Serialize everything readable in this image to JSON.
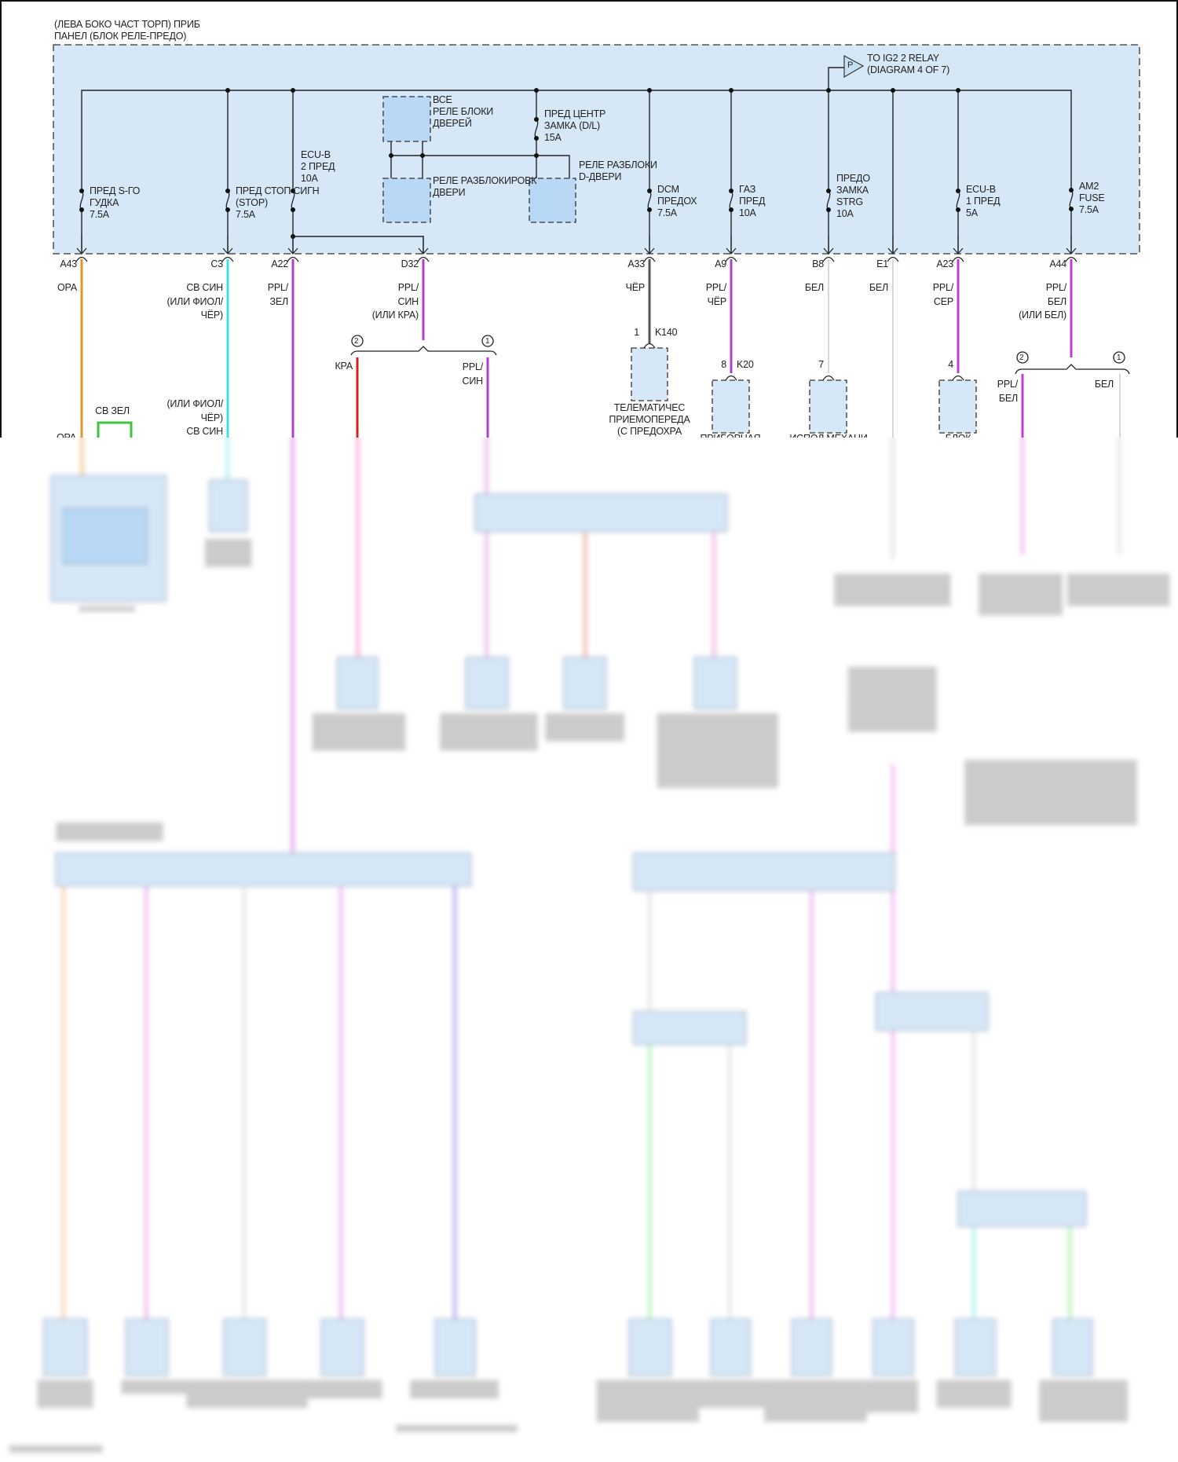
{
  "panel": {
    "title_lines": [
      "(ЛЕВА БОКО ЧАСТ ТОРП) ПРИБ",
      "ПАНЕЛ (БЛОК РЕЛЕ-ПРЕДО)"
    ],
    "fill_color": "#d6e8f8",
    "ig2_link": {
      "symbol": "P",
      "lines": [
        "TO IG2 2 RELAY",
        "(DIAGRAM 4 OF 7)"
      ]
    },
    "fuses": [
      {
        "lines": [
          "ПРЕД S-ГО",
          "ГУДКА",
          "7.5A"
        ]
      },
      {
        "lines": [
          "ПРЕД СТОП СИГН",
          "(STOP)",
          "7.5A"
        ]
      },
      {
        "lines": [
          "ECU-B",
          "2 ПРЕД",
          "10A"
        ]
      },
      {
        "lines": [
          "ПРЕД ЦЕНТР",
          "ЗАМКА (D/L)",
          "15A"
        ]
      },
      {
        "lines": [
          "DCM",
          "ПРЕДОХ",
          "7.5A"
        ]
      },
      {
        "lines": [
          "ГАЗ",
          "ПРЕД",
          "10A"
        ]
      },
      {
        "lines": [
          "ПРЕДО",
          "ЗАМКА",
          "STRG",
          "10A"
        ]
      },
      {
        "lines": [
          "ECU-B",
          "1 ПРЕД",
          "5A"
        ]
      },
      {
        "lines": [
          "AM2",
          "FUSE",
          "7.5A"
        ]
      }
    ],
    "relays": [
      {
        "lines": [
          "ВСЕ",
          "РЕЛЕ БЛОКИ",
          "ДВЕРЕЙ"
        ]
      },
      {
        "lines": [
          "РЕЛЕ РАЗБЛОКИРОВК",
          "ДВЕРИ"
        ]
      },
      {
        "lines": [
          "РЕЛЕ РАЗБЛОКИ",
          "D-ДВЕРИ"
        ]
      }
    ]
  },
  "pins": [
    {
      "id": "A43",
      "wire": [
        "ОРА"
      ],
      "color": "#e0952e"
    },
    {
      "id": "C3",
      "wire": [
        "СВ СИН",
        "(ИЛИ ФИОЛ/",
        "ЧЁР)"
      ],
      "color": "#3fe0e0"
    },
    {
      "id": "A22",
      "wire": [
        "PPL/",
        "ЗЕЛ"
      ],
      "color": "#b03cd0"
    },
    {
      "id": "D32",
      "wire": [
        "PPL/",
        "СИН",
        "(ИЛИ КРА)"
      ],
      "color": "#b03cd0"
    },
    {
      "id": "A33",
      "wire": [
        "ЧЁР"
      ],
      "color": "#555555"
    },
    {
      "id": "A9",
      "wire": [
        "PPL/",
        "ЧЁР"
      ],
      "color": "#b03cd0"
    },
    {
      "id": "B8",
      "wire": [
        "БЕЛ"
      ],
      "color": "#d8d8d8"
    },
    {
      "id": "E1",
      "wire": [
        "БЕЛ"
      ],
      "color": "#d8d8d8"
    },
    {
      "id": "A23",
      "wire": [
        "PPL/",
        "СЕР"
      ],
      "color": "#c23cd0"
    },
    {
      "id": "A44",
      "wire": [
        "PPL/",
        "БЕЛ",
        "(ИЛИ БЕЛ)"
      ],
      "color": "#c23cd0"
    }
  ],
  "d32_split": {
    "option_2": "2",
    "option_1": "1",
    "wire_2": "КРА",
    "wire_1": [
      "PPL/",
      "СИН"
    ],
    "color_2": "#d42020",
    "color_1": "#b03cd0"
  },
  "a44_split": {
    "option_2": "2",
    "option_1": "1",
    "wire_2": [
      "PPL/",
      "БЕЛ"
    ],
    "wire_1": "БЕЛ"
  },
  "a43_lower": {
    "wire": "ОРА",
    "jumper": "СВ ЗЕЛ",
    "jumper_color": "#3ec43e"
  },
  "c3_lower": {
    "wire": [
      "(ИЛИ ФИОЛ/",
      "ЧЁР)",
      "СВ СИН"
    ]
  },
  "components": [
    {
      "pin": "1",
      "connector": "K140",
      "lines": [
        "ТЕЛЕМАТИЧЕС",
        "ПРИЕМОПЕРЕДА",
        "(С ПРЕДОХРА"
      ]
    },
    {
      "pin": "8",
      "connector": "K20",
      "lines": [
        "ПРИБОРНАЯ"
      ]
    },
    {
      "pin": "7",
      "connector": "",
      "lines": [
        "ИСПОЛ МЕХАНИ"
      ]
    },
    {
      "pin": "4",
      "connector": "",
      "lines": [
        "БЛОК"
      ]
    }
  ]
}
